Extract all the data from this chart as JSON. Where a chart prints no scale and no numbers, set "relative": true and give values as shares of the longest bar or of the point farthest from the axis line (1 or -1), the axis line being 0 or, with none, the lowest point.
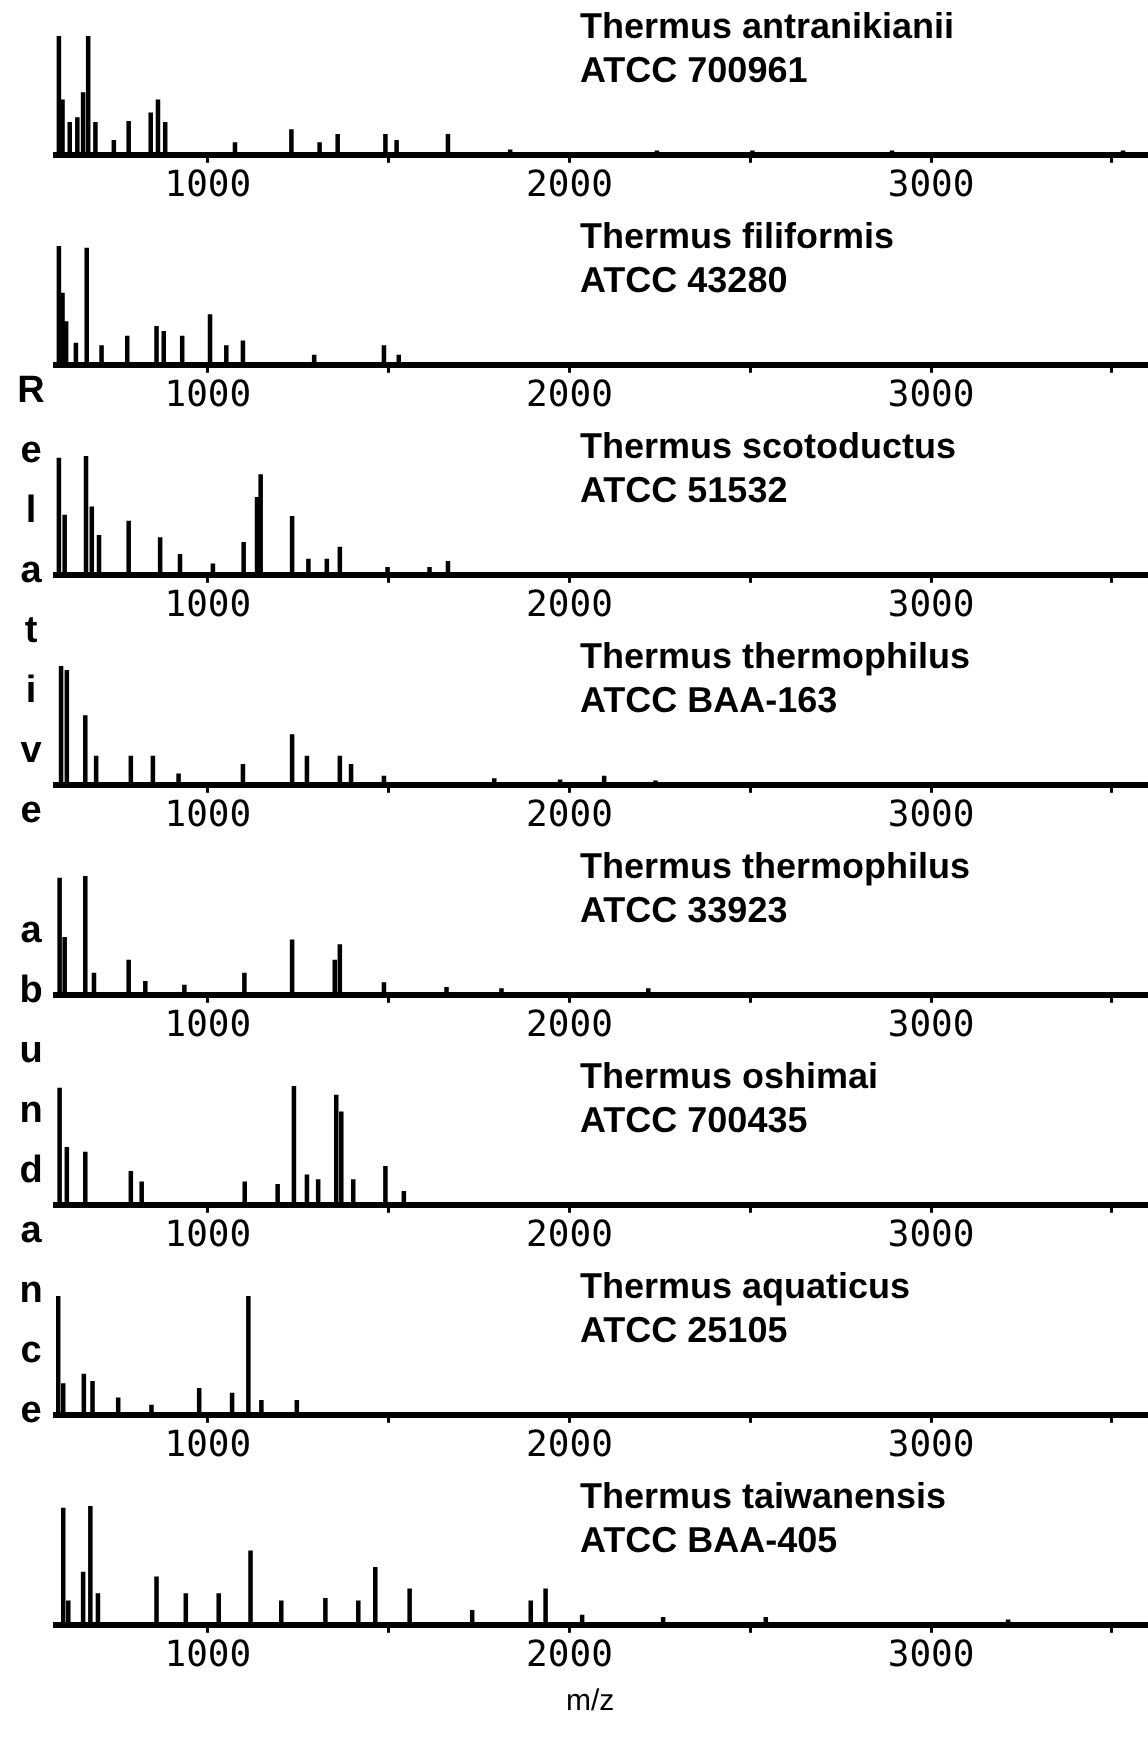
{
  "chart_data": [
    {
      "type": "bar",
      "title": "Thermus antranikianii",
      "subtitle": "ATCC 700961",
      "relative": true,
      "color": "#000000",
      "xlim": [
        580,
        3600
      ],
      "xticks": [
        1000,
        {
          "value": 1500,
          "label": null
        },
        2000,
        {
          "value": 2500,
          "label": null
        },
        3000,
        {
          "value": 3500,
          "label": null
        }
      ],
      "grid": false,
      "legend": false,
      "x": [
        588,
        598,
        618,
        639,
        655,
        669,
        689,
        740,
        781,
        842,
        862,
        882,
        1075,
        1231,
        1309,
        1359,
        1491,
        1522,
        1664,
        1836,
        2242,
        2506,
        2892,
        3531
      ],
      "values": [
        1.0,
        0.46,
        0.27,
        0.31,
        0.52,
        1.0,
        0.27,
        0.12,
        0.28,
        0.35,
        0.46,
        0.27,
        0.1,
        0.21,
        0.1,
        0.17,
        0.17,
        0.12,
        0.17,
        0.04,
        0.03,
        0.03,
        0.03,
        0.03
      ]
    },
    {
      "type": "bar",
      "title": "Thermus filiformis",
      "subtitle": "ATCC 43280",
      "relative": true,
      "color": "#000000",
      "xlim": [
        580,
        3600
      ],
      "xticks": [
        1000,
        {
          "value": 1500,
          "label": null
        },
        2000,
        {
          "value": 2500,
          "label": null
        },
        3000,
        {
          "value": 3500,
          "label": null
        }
      ],
      "grid": false,
      "legend": false,
      "x": [
        588,
        598,
        608,
        635,
        665,
        706,
        777,
        858,
        878,
        929,
        1006,
        1051,
        1097,
        1294,
        1487,
        1528
      ],
      "values": [
        1.0,
        0.6,
        0.36,
        0.18,
        0.98,
        0.16,
        0.24,
        0.32,
        0.28,
        0.24,
        0.42,
        0.16,
        0.2,
        0.08,
        0.16,
        0.08
      ]
    },
    {
      "type": "bar",
      "title": "Thermus scotoductus",
      "subtitle": "ATCC 51532",
      "relative": true,
      "color": "#000000",
      "xlim": [
        580,
        3600
      ],
      "xticks": [
        1000,
        {
          "value": 1500,
          "label": null
        },
        2000,
        {
          "value": 2500,
          "label": null
        },
        3000,
        {
          "value": 3500,
          "label": null
        }
      ],
      "grid": false,
      "legend": false,
      "x": [
        588,
        604,
        663,
        679,
        699,
        781,
        868,
        923,
        1014,
        1099,
        1136,
        1146,
        1233,
        1278,
        1329,
        1365,
        1497,
        1613,
        1664
      ],
      "values": [
        0.98,
        0.5,
        1.0,
        0.57,
        0.33,
        0.45,
        0.31,
        0.17,
        0.09,
        0.27,
        0.65,
        0.84,
        0.49,
        0.13,
        0.13,
        0.23,
        0.06,
        0.06,
        0.11
      ]
    },
    {
      "type": "bar",
      "title": "Thermus thermophilus",
      "subtitle": "ATCC BAA-163",
      "relative": true,
      "color": "#000000",
      "xlim": [
        580,
        3600
      ],
      "xticks": [
        1000,
        {
          "value": 1500,
          "label": null
        },
        2000,
        {
          "value": 2500,
          "label": null
        },
        3000,
        {
          "value": 3500,
          "label": null
        }
      ],
      "grid": false,
      "legend": false,
      "x": [
        594,
        610,
        661,
        691,
        787,
        848,
        919,
        1097,
        1233,
        1274,
        1365,
        1396,
        1487,
        1792,
        1974,
        2096,
        2238
      ],
      "values": [
        1.0,
        0.96,
        0.58,
        0.24,
        0.24,
        0.24,
        0.09,
        0.17,
        0.42,
        0.24,
        0.24,
        0.17,
        0.07,
        0.05,
        0.04,
        0.07,
        0.03
      ]
    },
    {
      "type": "bar",
      "title": "Thermus thermophilus",
      "subtitle": "ATCC 33923",
      "ylabel": "Relative abundance",
      "relative": true,
      "color": "#000000",
      "xlim": [
        580,
        3600
      ],
      "xticks": [
        1000,
        {
          "value": 1500,
          "label": null
        },
        2000,
        {
          "value": 2500,
          "label": null
        },
        3000,
        {
          "value": 3500,
          "label": null
        }
      ],
      "grid": false,
      "legend": false,
      "x": [
        590,
        604,
        661,
        685,
        781,
        827,
        935,
        1101,
        1233,
        1351,
        1365,
        1487,
        1660,
        1812,
        2218
      ],
      "values": [
        0.98,
        0.48,
        1.0,
        0.18,
        0.29,
        0.11,
        0.08,
        0.18,
        0.46,
        0.29,
        0.42,
        0.1,
        0.06,
        0.05,
        0.05
      ]
    },
    {
      "type": "bar",
      "title": "Thermus oshimai",
      "subtitle": "ATCC 700435",
      "relative": true,
      "color": "#000000",
      "xlim": [
        580,
        3600
      ],
      "xticks": [
        1000,
        {
          "value": 1500,
          "label": null
        },
        2000,
        {
          "value": 2500,
          "label": null
        },
        3000,
        {
          "value": 3500,
          "label": null
        }
      ],
      "grid": false,
      "legend": false,
      "x": [
        590,
        610,
        661,
        787,
        817,
        1102,
        1193,
        1238,
        1274,
        1305,
        1355,
        1369,
        1402,
        1491,
        1542
      ],
      "values": [
        0.98,
        0.48,
        0.44,
        0.28,
        0.19,
        0.19,
        0.17,
        1.0,
        0.25,
        0.21,
        0.92,
        0.78,
        0.21,
        0.32,
        0.11
      ]
    },
    {
      "type": "bar",
      "title": "Thermus aquaticus",
      "subtitle": "ATCC 25105",
      "relative": true,
      "color": "#000000",
      "xlim": [
        580,
        3600
      ],
      "xticks": [
        1000,
        {
          "value": 1500,
          "label": null
        },
        2000,
        {
          "value": 2500,
          "label": null
        },
        3000,
        {
          "value": 3500,
          "label": null
        }
      ],
      "grid": false,
      "legend": false,
      "x": [
        586,
        600,
        657,
        681,
        752,
        844,
        976,
        1067,
        1112,
        1148,
        1246
      ],
      "values": [
        1.0,
        0.26,
        0.34,
        0.28,
        0.14,
        0.08,
        0.22,
        0.18,
        1.0,
        0.12,
        0.12
      ]
    },
    {
      "type": "bar",
      "title": "Thermus taiwanensis",
      "subtitle": "ATCC BAA-405",
      "xlabel": "m/z",
      "relative": true,
      "color": "#000000",
      "xlim": [
        580,
        3600
      ],
      "xticks": [
        1000,
        {
          "value": 1500,
          "label": null
        },
        2000,
        {
          "value": 2500,
          "label": null
        },
        3000,
        {
          "value": 3500,
          "label": null
        }
      ],
      "grid": false,
      "legend": false,
      "x": [
        600,
        614,
        655,
        675,
        696,
        858,
        939,
        1030,
        1118,
        1203,
        1325,
        1416,
        1463,
        1558,
        1731,
        1893,
        1934,
        2035,
        2259,
        2543,
        3213
      ],
      "values": [
        0.98,
        0.2,
        0.44,
        1.0,
        0.26,
        0.4,
        0.26,
        0.26,
        0.62,
        0.2,
        0.22,
        0.2,
        0.48,
        0.3,
        0.12,
        0.2,
        0.3,
        0.08,
        0.06,
        0.06,
        0.04
      ]
    }
  ]
}
